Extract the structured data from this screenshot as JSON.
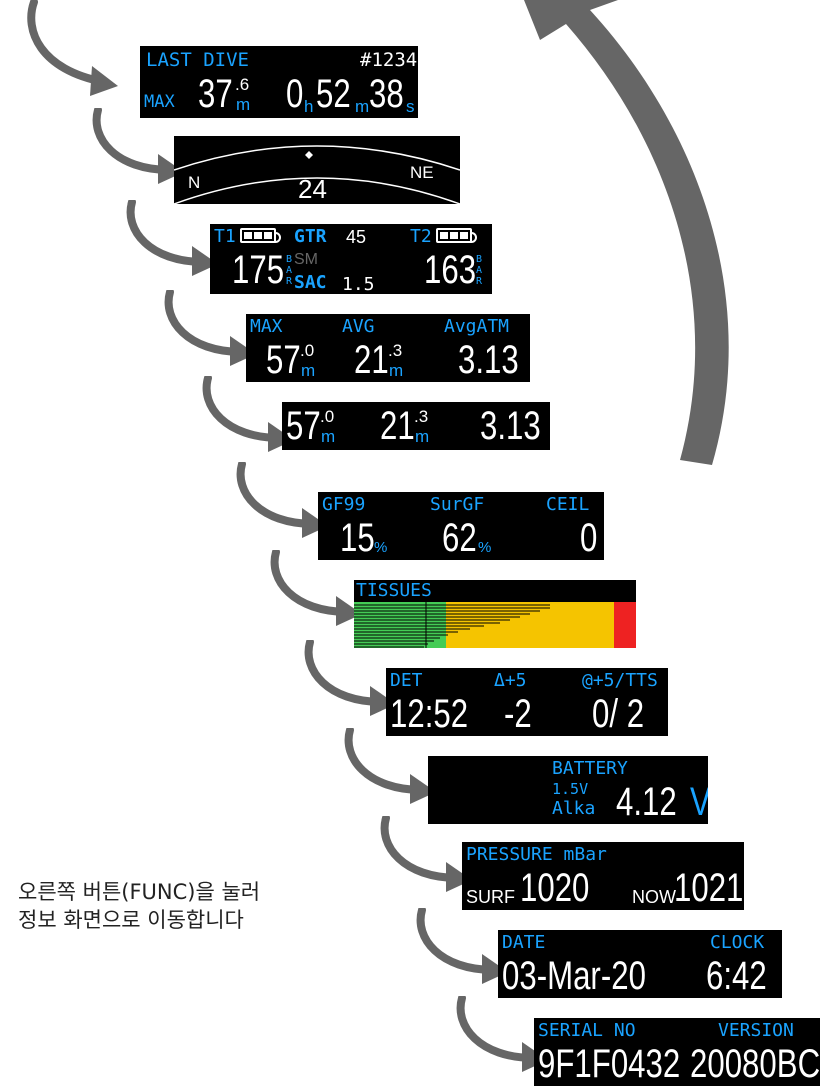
{
  "caption": {
    "line1": "오른쪽 버튼(FUNC)을 눌러",
    "line2": "정보 화면으로 이동합니다"
  },
  "screens": {
    "last_dive": {
      "title": "LAST DIVE",
      "number": "#1234",
      "max_label": "MAX",
      "depth_int": "37",
      "depth_dec": ".6",
      "depth_unit": "m",
      "h": "0",
      "h_unit": "h",
      "m": "52",
      "m_unit": "m",
      "s": "38",
      "s_unit": "s"
    },
    "compass": {
      "left_dir": "N",
      "right_dir": "NE",
      "heading": "24"
    },
    "ai": {
      "t1": "T1",
      "t2": "T2",
      "gtr_label": "GTR",
      "gtr_value": "45",
      "sm_label": "SM",
      "sac_label": "SAC",
      "sac_value": "1.5",
      "p1": "175",
      "p2": "163",
      "p_unit": "BAR"
    },
    "depth_stats": {
      "max_label": "MAX",
      "avg_label": "AVG",
      "atm_label": "AvgATM",
      "max_int": "57",
      "max_dec": ".0",
      "avg_int": "21",
      "avg_dec": ".3",
      "unit": "m",
      "atm_value": "3.13"
    },
    "depth_stats_cropped": {
      "max_int": "57",
      "max_dec": ".0",
      "avg_int": "21",
      "avg_dec": ".3",
      "unit": "m",
      "atm_value": "3.13"
    },
    "gf": {
      "gf99_label": "GF99",
      "surgf_label": "SurGF",
      "ceil_label": "CEIL",
      "gf99_value": "15",
      "surgf_value": "62",
      "pct": "%",
      "ceil_value": "0"
    },
    "tissues": {
      "title": "TISSUES",
      "colors": {
        "green": "#44cc55",
        "yellow": "#f5c400",
        "red": "#ee2222"
      }
    },
    "tts": {
      "det_label": "DET",
      "delta_label": "Δ+5",
      "at_label": "@+5/TTS",
      "det_value": "12:52",
      "delta_value": "-2",
      "at_value": "0/ 2"
    },
    "battery": {
      "title": "BATTERY",
      "type_v": "1.5V",
      "type_name": "Alka",
      "value": "4.12",
      "unit": "V"
    },
    "pressure": {
      "title": "PRESSURE mBar",
      "surf_label": "SURF",
      "surf_value": "1020",
      "now_label": "NOW",
      "now_value": "1021"
    },
    "datetime": {
      "date_label": "DATE",
      "clock_label": "CLOCK",
      "date_value": "03-Mar-20",
      "clock_value": "6:42"
    },
    "serial": {
      "serial_label": "SERIAL NO",
      "version_label": "VERSION",
      "serial_value": "9F1F0432",
      "version_value": "20080BC"
    }
  },
  "colors": {
    "accent": "#1aa3ff",
    "arrow": "#666666",
    "screen_bg": "#000000"
  }
}
